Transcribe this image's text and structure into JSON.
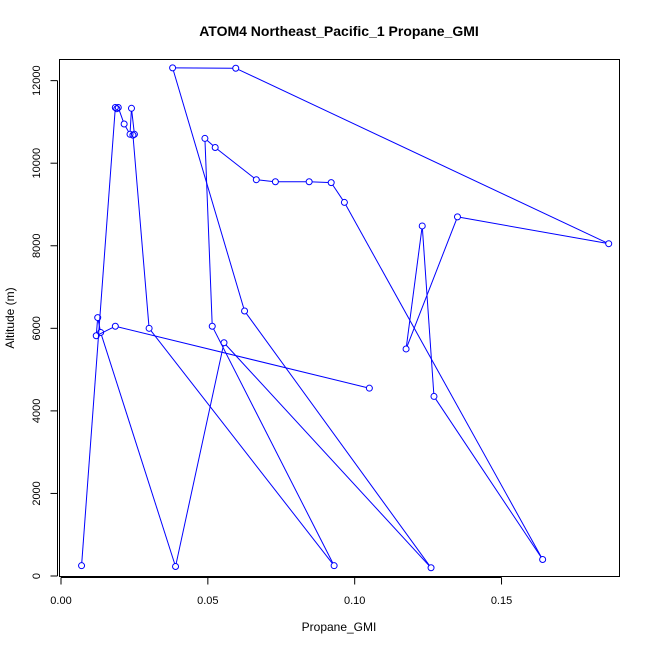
{
  "chart_data": {
    "type": "line",
    "title": "ATOM4 Northeast_Pacific_1 Propane_GMI",
    "xlabel": "Propane_GMI",
    "ylabel": "Altitude (m)",
    "xlim": [
      0.0,
      0.19
    ],
    "ylim": [
      0,
      12500
    ],
    "xticks": [
      0.0,
      0.05,
      0.1,
      0.15
    ],
    "xtick_labels": [
      "0.00",
      "0.05",
      "0.10",
      "0.15"
    ],
    "yticks": [
      0,
      2000,
      4000,
      6000,
      8000,
      10000,
      12000
    ],
    "ytick_labels": [
      "0",
      "2000",
      "4000",
      "6000",
      "8000",
      "10000",
      "12000"
    ],
    "grid": false,
    "marker": "open-circle",
    "color": "#0000ff",
    "series": [
      {
        "x": [
          0.007,
          0.0185,
          0.019,
          0.0195,
          0.0215,
          0.0235,
          0.024,
          0.025,
          0.0245,
          0.03,
          0.093,
          0.0515,
          0.049,
          0.0525,
          0.0665,
          0.073,
          0.0845,
          0.092,
          0.0965,
          0.164,
          0.127,
          0.123,
          0.1175,
          0.135,
          0.1865,
          0.0595,
          0.038,
          0.0625,
          0.126,
          0.0555,
          0.039,
          0.0135,
          0.0125,
          0.012,
          0.0185,
          0.105
        ],
        "y": [
          250,
          11350,
          11320,
          11350,
          10950,
          10700,
          11330,
          10700,
          10680,
          6000,
          250,
          6050,
          10600,
          10380,
          9600,
          9550,
          9550,
          9530,
          9050,
          400,
          4350,
          8480,
          5500,
          8700,
          8050,
          12300,
          12310,
          6420,
          200,
          5650,
          230,
          5900,
          6260,
          5820,
          6050,
          4550
        ]
      }
    ]
  }
}
